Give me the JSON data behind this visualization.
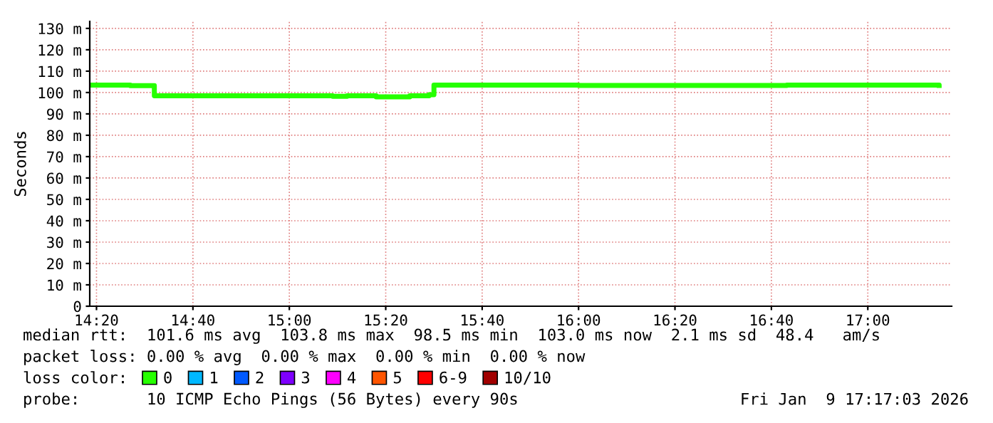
{
  "chart_data": {
    "type": "step",
    "ylabel": "Seconds",
    "x": [
      14.3167,
      14.45,
      14.5333,
      15.15,
      15.2,
      15.3,
      15.4167,
      15.4833,
      15.5,
      16.0,
      16.72,
      17.2467
    ],
    "series": [
      {
        "name": "0",
        "color": "#26ff00",
        "values": [
          103.5,
          103.2,
          98.5,
          98.2,
          98.5,
          98.0,
          98.5,
          99.0,
          103.5,
          103.3,
          103.5,
          103.3
        ]
      },
      {
        "name": "1",
        "color": "#00b8ff",
        "values": [
          null,
          null,
          null,
          null,
          null,
          null,
          null,
          null,
          null,
          null,
          null,
          null
        ]
      },
      {
        "name": "2",
        "color": "#0059ff",
        "values": [
          null,
          null,
          null,
          null,
          null,
          null,
          null,
          null,
          null,
          null,
          null,
          null
        ]
      },
      {
        "name": "3",
        "color": "#7e00ff",
        "values": [
          null,
          null,
          null,
          null,
          null,
          null,
          null,
          null,
          null,
          null,
          null,
          null
        ]
      },
      {
        "name": "4",
        "color": "#ff00ff",
        "values": [
          null,
          null,
          null,
          null,
          null,
          null,
          null,
          null,
          null,
          null,
          null,
          null
        ]
      },
      {
        "name": "5",
        "color": "#ff5500",
        "values": [
          null,
          null,
          null,
          null,
          null,
          null,
          null,
          null,
          null,
          null,
          null,
          null
        ]
      },
      {
        "name": "6-9",
        "color": "#ff0000",
        "values": [
          null,
          null,
          null,
          null,
          null,
          null,
          null,
          null,
          null,
          null,
          null,
          null
        ]
      },
      {
        "name": "10/10",
        "color": "#a10000",
        "values": [
          null,
          null,
          null,
          null,
          null,
          null,
          null,
          null,
          null,
          null,
          null,
          null
        ]
      }
    ],
    "legend": "bottom",
    "legend_title": "loss color:",
    "xlim": [
      14.31,
      17.29
    ],
    "xticks": [
      {
        "value": 14.3333,
        "label": "14:20"
      },
      {
        "value": 14.6667,
        "label": "14:40"
      },
      {
        "value": 15.0,
        "label": "15:00"
      },
      {
        "value": 15.3333,
        "label": "15:20"
      },
      {
        "value": 15.6667,
        "label": "15:40"
      },
      {
        "value": 16.0,
        "label": "16:00"
      },
      {
        "value": 16.3333,
        "label": "16:20"
      },
      {
        "value": 16.6667,
        "label": "16:40"
      },
      {
        "value": 17.0,
        "label": "17:00"
      }
    ],
    "ylim": [
      0,
      133.3
    ],
    "yticks": [
      0,
      {
        "value": 10,
        "label": "10 m"
      },
      {
        "value": 20,
        "label": "20 m"
      },
      {
        "value": 30,
        "label": "30 m"
      },
      {
        "value": 40,
        "label": "40 m"
      },
      {
        "value": 50,
        "label": "50 m"
      },
      {
        "value": 60,
        "label": "60 m"
      },
      {
        "value": 70,
        "label": "70 m"
      },
      {
        "value": 80,
        "label": "80 m"
      },
      {
        "value": 90,
        "label": "90 m"
      },
      {
        "value": 100,
        "label": "100 m"
      },
      {
        "value": 110,
        "label": "110 m"
      },
      {
        "value": 120,
        "label": "120 m"
      },
      {
        "value": 130,
        "label": "130 m"
      }
    ],
    "grid": true,
    "line_style": "solid",
    "marker": "none",
    "annotations": [
      "median rtt:  101.6 ms avg  103.8 ms max  98.5 ms min  103.0 ms now  2.1 ms sd  48.4   am/s",
      "packet loss: 0.00 % avg  0.00 % max  0.00 % min  0.00 % now",
      "probe:       10 ICMP Echo Pings (56 Bytes) every 90s",
      "Fri Jan  9 17:17:03 2026"
    ]
  }
}
